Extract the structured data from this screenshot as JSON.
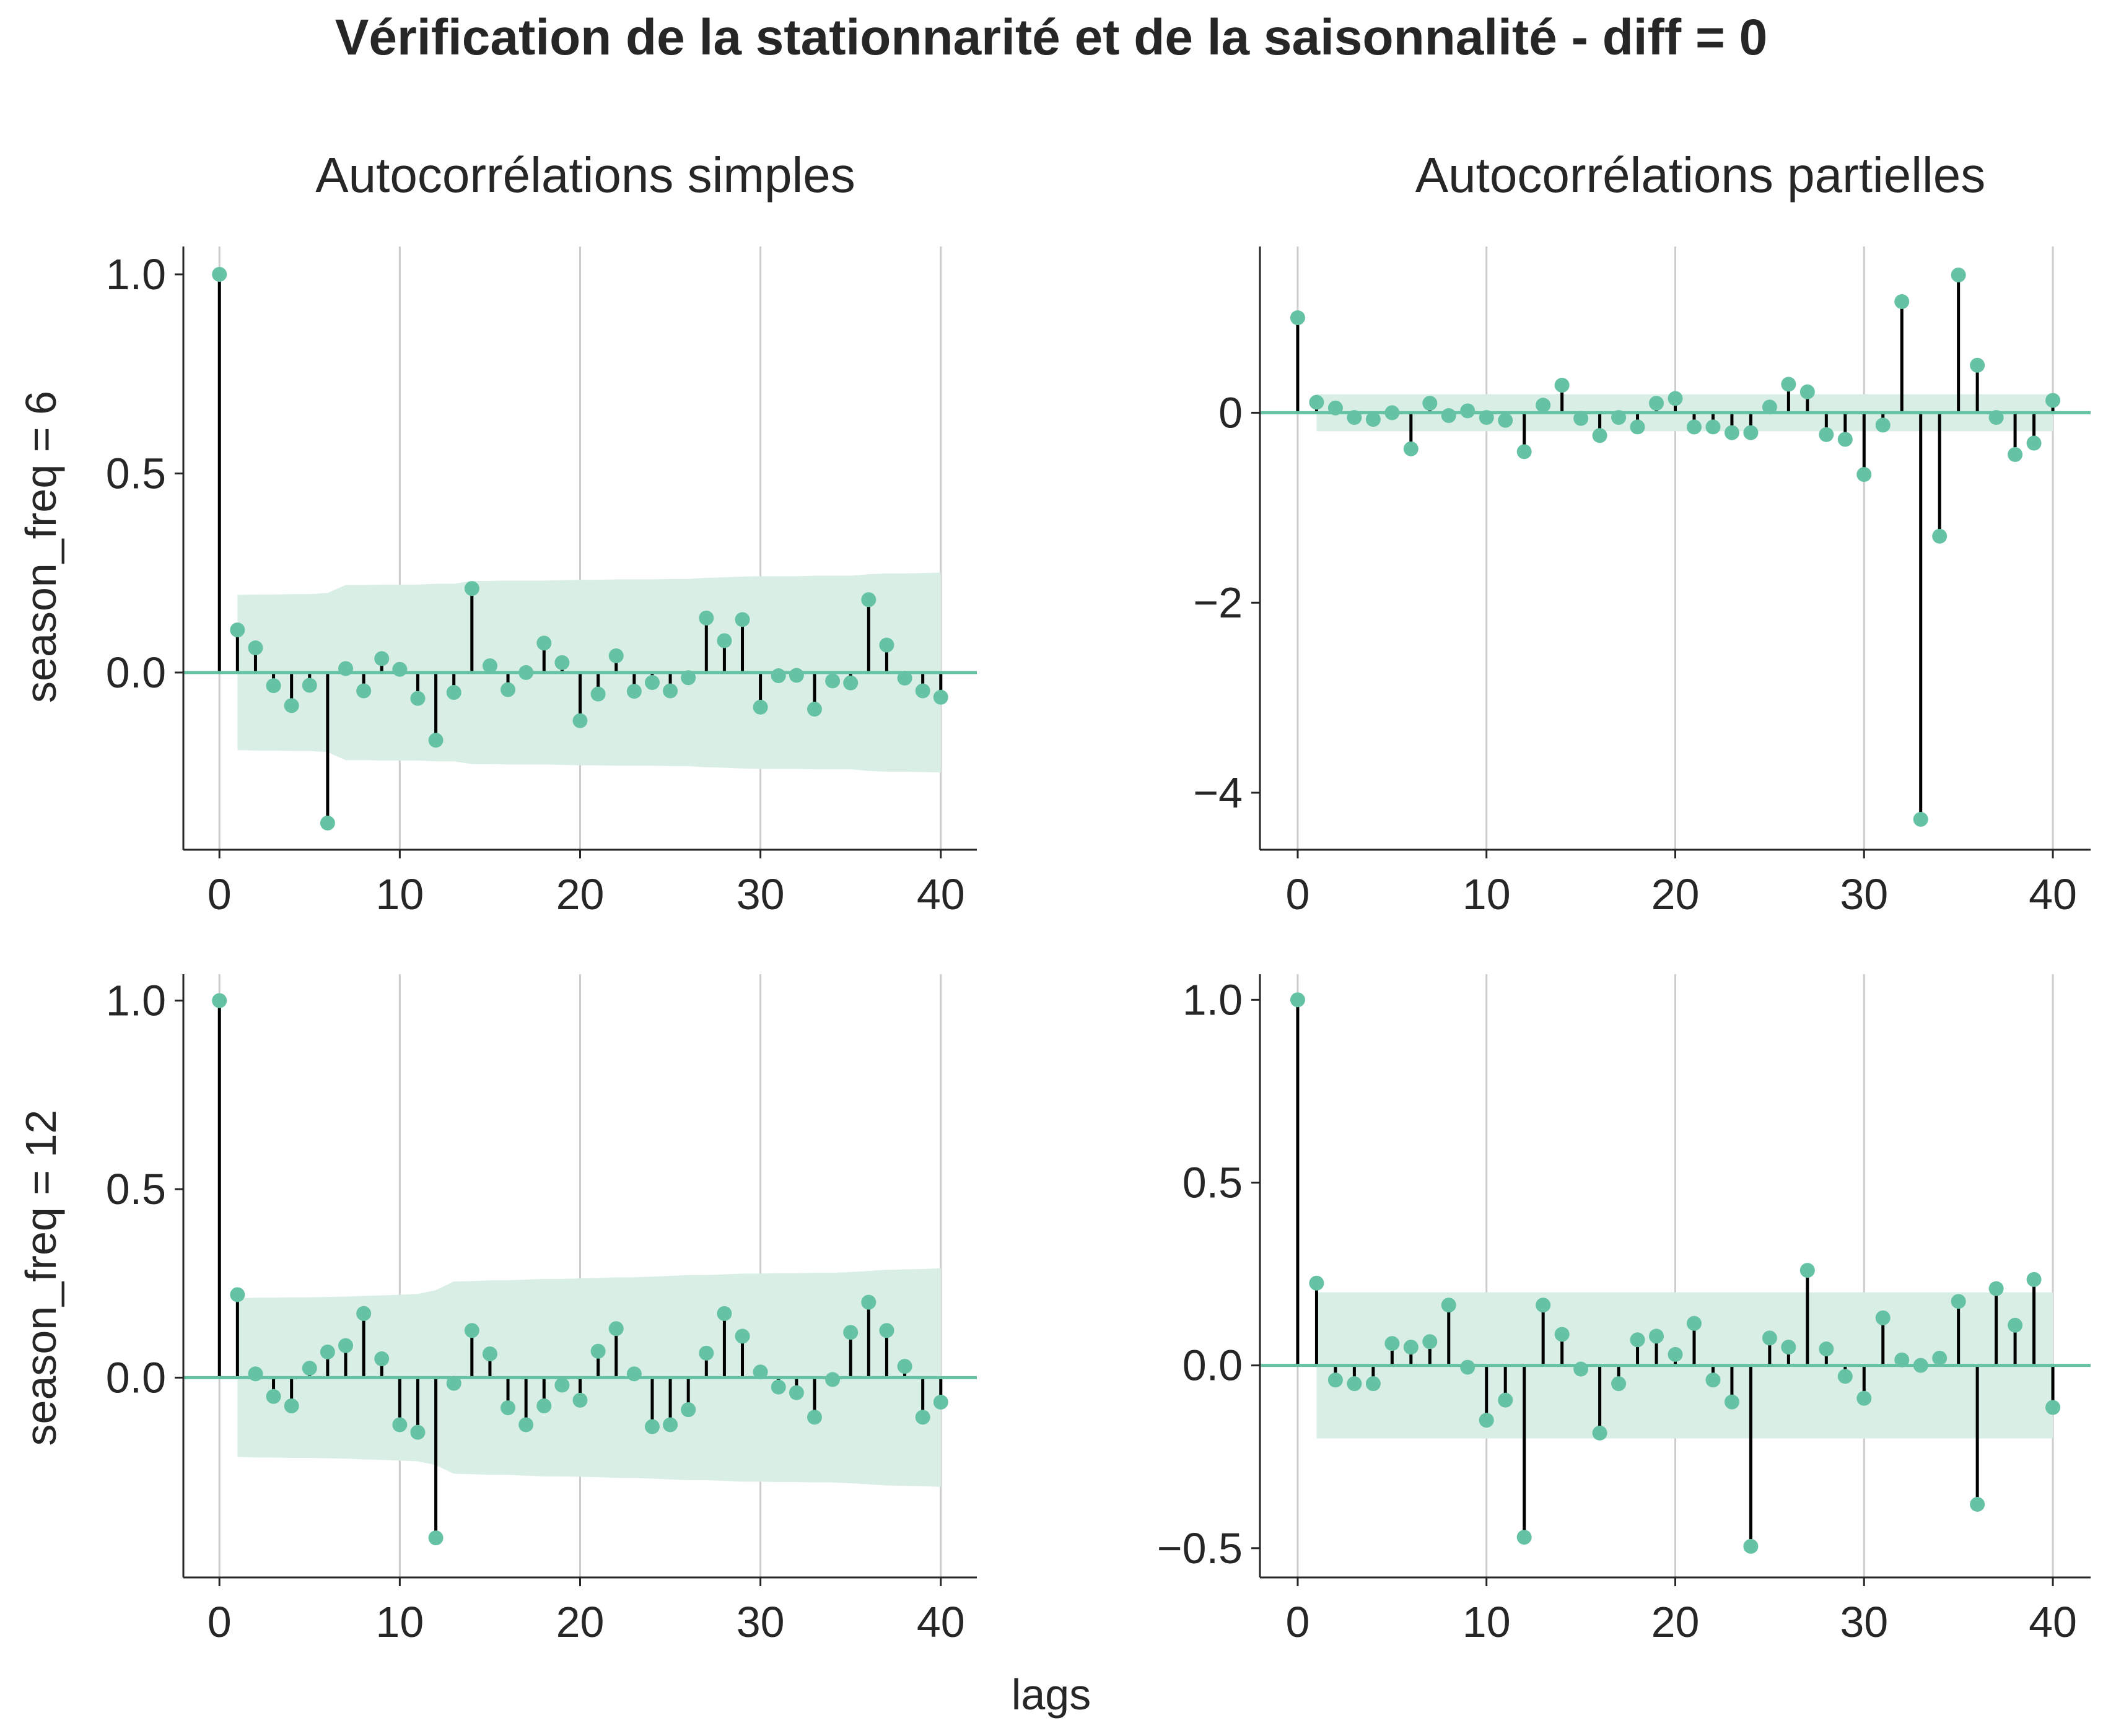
{
  "title": "Vérification de la stationnarité et de la saisonnalité - diff = 0",
  "column_titles": [
    "Autocorrélations simples",
    "Autocorrélations partielles"
  ],
  "row_labels": [
    "season_freq = 6",
    "season_freq = 12"
  ],
  "xlabel": "lags",
  "colors": {
    "marker": "#66c2a5",
    "stem": "#000000",
    "band": "#d9efe6",
    "grid": "#cccccc",
    "axis": "#262626"
  },
  "chart_data": [
    {
      "type": "stem",
      "title": "Autocorrélations simples",
      "ylabel": "season_freq = 6",
      "xlim": [
        -2,
        42
      ],
      "ylim": [
        -0.445,
        1.07
      ],
      "xticks": [
        0,
        10,
        20,
        30,
        40
      ],
      "xtick_labels": [
        "0",
        "10",
        "20",
        "30",
        "40"
      ],
      "yticks": [
        1.0,
        0.5,
        0.0
      ],
      "ytick_labels": [
        "1.0",
        "0.5",
        "0.0"
      ],
      "grid": "x",
      "lags": [
        0,
        1,
        2,
        3,
        4,
        5,
        6,
        7,
        8,
        9,
        10,
        11,
        12,
        13,
        14,
        15,
        16,
        17,
        18,
        19,
        20,
        21,
        22,
        23,
        24,
        25,
        26,
        27,
        28,
        29,
        30,
        31,
        32,
        33,
        34,
        35,
        36,
        37,
        38,
        39,
        40
      ],
      "values": [
        1.0,
        0.107,
        0.062,
        -0.033,
        -0.083,
        -0.032,
        -0.378,
        0.01,
        -0.046,
        0.035,
        0.008,
        -0.065,
        -0.17,
        -0.05,
        0.211,
        0.017,
        -0.043,
        0.0,
        0.074,
        0.025,
        -0.121,
        -0.054,
        0.042,
        -0.047,
        -0.025,
        -0.046,
        -0.013,
        0.137,
        0.08,
        0.133,
        -0.087,
        -0.008,
        -0.007,
        -0.092,
        -0.021,
        -0.026,
        0.183,
        0.069,
        -0.014,
        -0.046,
        -0.062
      ],
      "confint": [
        0.0,
        0.195,
        0.196,
        0.196,
        0.197,
        0.197,
        0.2,
        0.22,
        0.22,
        0.221,
        0.221,
        0.221,
        0.223,
        0.223,
        0.23,
        0.23,
        0.231,
        0.231,
        0.231,
        0.232,
        0.233,
        0.233,
        0.234,
        0.234,
        0.234,
        0.235,
        0.235,
        0.238,
        0.239,
        0.241,
        0.242,
        0.242,
        0.242,
        0.243,
        0.243,
        0.243,
        0.247,
        0.249,
        0.249,
        0.25,
        0.251
      ]
    },
    {
      "type": "stem",
      "title": "Autocorrélations partielles",
      "ylabel": "",
      "xlim": [
        -2,
        42
      ],
      "ylim": [
        -4.6,
        1.75
      ],
      "xticks": [
        0,
        10,
        20,
        30,
        40
      ],
      "xtick_labels": [
        "0",
        "10",
        "20",
        "30",
        "40"
      ],
      "yticks": [
        0,
        -2,
        -4
      ],
      "ytick_labels": [
        "0",
        "−2",
        "−4"
      ],
      "grid": "x",
      "lags": [
        0,
        1,
        2,
        3,
        4,
        5,
        6,
        7,
        8,
        9,
        10,
        11,
        12,
        13,
        14,
        15,
        16,
        17,
        18,
        19,
        20,
        21,
        22,
        23,
        24,
        25,
        26,
        27,
        28,
        29,
        30,
        31,
        32,
        33,
        34,
        35,
        36,
        37,
        38,
        39,
        40
      ],
      "values": [
        1.0,
        0.11,
        0.05,
        -0.05,
        -0.07,
        0.0,
        -0.38,
        0.1,
        -0.03,
        0.02,
        -0.05,
        -0.08,
        -0.41,
        0.08,
        0.29,
        -0.06,
        -0.24,
        -0.05,
        -0.15,
        0.1,
        0.15,
        -0.15,
        -0.15,
        -0.21,
        -0.21,
        0.06,
        0.3,
        0.22,
        -0.23,
        -0.28,
        -0.65,
        -0.13,
        1.17,
        -4.28,
        -1.3,
        1.45,
        0.5,
        -0.05,
        -0.44,
        -0.32,
        0.13
      ],
      "confint": [
        0.0,
        0.195,
        0.195,
        0.195,
        0.195,
        0.195,
        0.195,
        0.195,
        0.195,
        0.195,
        0.195,
        0.195,
        0.195,
        0.195,
        0.195,
        0.195,
        0.195,
        0.195,
        0.195,
        0.195,
        0.195,
        0.195,
        0.195,
        0.195,
        0.195,
        0.195,
        0.195,
        0.195,
        0.195,
        0.195,
        0.195,
        0.195,
        0.195,
        0.195,
        0.195,
        0.195,
        0.195,
        0.195,
        0.195,
        0.195,
        0.195
      ]
    },
    {
      "type": "stem",
      "title": "",
      "ylabel": "season_freq = 12",
      "xlim": [
        -2,
        42
      ],
      "ylim": [
        -0.53,
        1.07
      ],
      "xticks": [
        0,
        10,
        20,
        30,
        40
      ],
      "xtick_labels": [
        "0",
        "10",
        "20",
        "30",
        "40"
      ],
      "yticks": [
        1.0,
        0.5,
        0.0
      ],
      "ytick_labels": [
        "1.0",
        "0.5",
        "0.0"
      ],
      "grid": "x",
      "lags": [
        0,
        1,
        2,
        3,
        4,
        5,
        6,
        7,
        8,
        9,
        10,
        11,
        12,
        13,
        14,
        15,
        16,
        17,
        18,
        19,
        20,
        21,
        22,
        23,
        24,
        25,
        26,
        27,
        28,
        29,
        30,
        31,
        32,
        33,
        34,
        35,
        36,
        37,
        38,
        39,
        40
      ],
      "values": [
        1.0,
        0.22,
        0.01,
        -0.05,
        -0.075,
        0.025,
        0.068,
        0.085,
        0.17,
        0.05,
        -0.125,
        -0.145,
        -0.425,
        -0.015,
        0.125,
        0.063,
        -0.08,
        -0.125,
        -0.075,
        -0.02,
        -0.06,
        0.07,
        0.13,
        0.01,
        -0.13,
        -0.125,
        -0.085,
        0.065,
        0.17,
        0.11,
        0.015,
        -0.025,
        -0.04,
        -0.105,
        -0.005,
        0.12,
        0.2,
        0.125,
        0.03,
        -0.105,
        -0.065
      ],
      "confint": [
        0.0,
        0.21,
        0.212,
        0.212,
        0.213,
        0.213,
        0.214,
        0.215,
        0.217,
        0.218,
        0.22,
        0.222,
        0.232,
        0.255,
        0.256,
        0.258,
        0.258,
        0.26,
        0.262,
        0.262,
        0.263,
        0.264,
        0.266,
        0.266,
        0.268,
        0.27,
        0.272,
        0.272,
        0.274,
        0.276,
        0.276,
        0.277,
        0.277,
        0.278,
        0.278,
        0.28,
        0.283,
        0.286,
        0.287,
        0.288,
        0.29
      ]
    },
    {
      "type": "stem",
      "title": "",
      "ylabel": "",
      "xlim": [
        -2,
        42
      ],
      "ylim": [
        -0.58,
        1.07
      ],
      "xticks": [
        0,
        10,
        20,
        30,
        40
      ],
      "xtick_labels": [
        "0",
        "10",
        "20",
        "30",
        "40"
      ],
      "yticks": [
        1.0,
        0.5,
        0.0,
        -0.5
      ],
      "ytick_labels": [
        "1.0",
        "0.5",
        "0.0",
        "−0.5"
      ],
      "grid": "x",
      "lags": [
        0,
        1,
        2,
        3,
        4,
        5,
        6,
        7,
        8,
        9,
        10,
        11,
        12,
        13,
        14,
        15,
        16,
        17,
        18,
        19,
        20,
        21,
        22,
        23,
        24,
        25,
        26,
        27,
        28,
        29,
        30,
        31,
        32,
        33,
        34,
        35,
        36,
        37,
        38,
        39,
        40
      ],
      "values": [
        1.0,
        0.225,
        -0.04,
        -0.05,
        -0.05,
        0.06,
        0.05,
        0.065,
        0.165,
        -0.005,
        -0.15,
        -0.095,
        -0.47,
        0.165,
        0.085,
        -0.01,
        -0.185,
        -0.05,
        0.07,
        0.08,
        0.03,
        0.115,
        -0.04,
        -0.1,
        -0.495,
        0.075,
        0.05,
        0.26,
        0.045,
        -0.03,
        -0.09,
        0.13,
        0.015,
        0.0,
        0.02,
        0.175,
        -0.38,
        0.21,
        0.11,
        0.235,
        -0.115
      ],
      "confint": [
        0.0,
        0.2,
        0.2,
        0.2,
        0.2,
        0.2,
        0.2,
        0.2,
        0.2,
        0.2,
        0.2,
        0.2,
        0.2,
        0.2,
        0.2,
        0.2,
        0.2,
        0.2,
        0.2,
        0.2,
        0.2,
        0.2,
        0.2,
        0.2,
        0.2,
        0.2,
        0.2,
        0.2,
        0.2,
        0.2,
        0.2,
        0.2,
        0.2,
        0.2,
        0.2,
        0.2,
        0.2,
        0.2,
        0.2,
        0.2,
        0.2
      ]
    }
  ]
}
